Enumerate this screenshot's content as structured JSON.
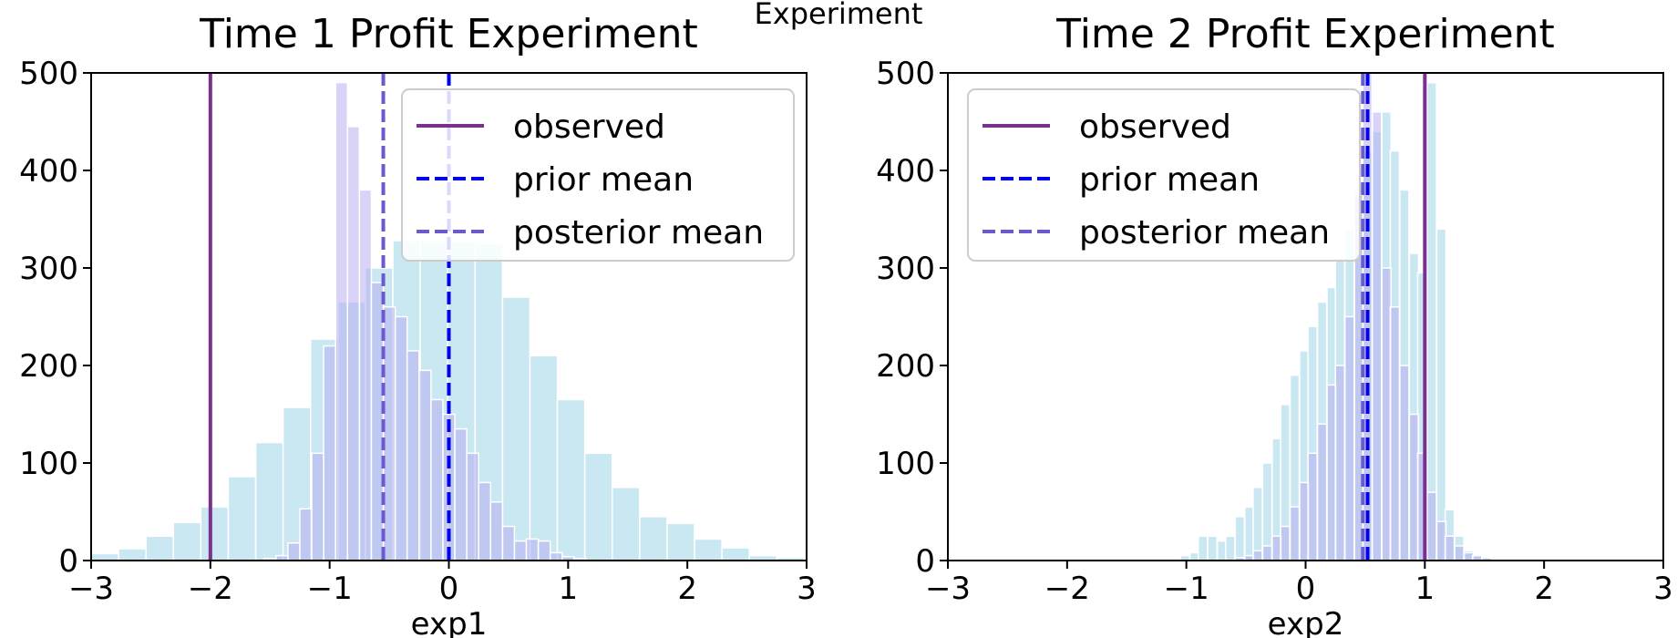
{
  "figure": {
    "suptitle": "Experiment"
  },
  "chart_data": [
    {
      "type": "histogram",
      "title": "Time 1 Profit Experiment",
      "xlabel": "exp1",
      "ylabel": "",
      "xlim": [
        -3,
        3
      ],
      "ylim": [
        0,
        500
      ],
      "xticks": [
        "−3",
        "−2",
        "−1",
        "0",
        "1",
        "2",
        "3"
      ],
      "yticks": [
        "0",
        "100",
        "200",
        "300",
        "400",
        "500"
      ],
      "grid": false,
      "legend": {
        "position": "top-right",
        "entries": [
          "observed",
          "prior mean",
          "posterior mean"
        ]
      },
      "colors": {
        "prior": "#a6d8ea",
        "posterior": "#b3a8f0",
        "observed": "#7b2f8f",
        "prior_mean": "#0000ee",
        "posterior_mean": "#6a5acd"
      },
      "series": [
        {
          "name": "prior",
          "bin_width": 0.23,
          "bins": [
            [
              -3.0,
              7
            ],
            [
              -2.77,
              12
            ],
            [
              -2.54,
              25
            ],
            [
              -2.31,
              39
            ],
            [
              -2.08,
              55
            ],
            [
              -1.85,
              86
            ],
            [
              -1.62,
              121
            ],
            [
              -1.39,
              157
            ],
            [
              -1.16,
              227
            ],
            [
              -0.93,
              265
            ],
            [
              -0.7,
              300
            ],
            [
              -0.47,
              328
            ],
            [
              -0.24,
              328
            ],
            [
              -0.01,
              327
            ],
            [
              0.22,
              325
            ],
            [
              0.45,
              270
            ],
            [
              0.68,
              210
            ],
            [
              0.91,
              165
            ],
            [
              1.14,
              110
            ],
            [
              1.37,
              75
            ],
            [
              1.6,
              45
            ],
            [
              1.83,
              38
            ],
            [
              2.06,
              22
            ],
            [
              2.29,
              13
            ],
            [
              2.52,
              5
            ],
            [
              2.75,
              3
            ]
          ]
        },
        {
          "name": "posterior",
          "bin_width": 0.1,
          "bins": [
            [
              -1.55,
              2
            ],
            [
              -1.45,
              5
            ],
            [
              -1.35,
              18
            ],
            [
              -1.25,
              53
            ],
            [
              -1.15,
              110
            ],
            [
              -1.05,
              220
            ],
            [
              -0.95,
              490
            ],
            [
              -0.85,
              445
            ],
            [
              -0.75,
              380
            ],
            [
              -0.65,
              285
            ],
            [
              -0.55,
              260
            ],
            [
              -0.45,
              250
            ],
            [
              -0.35,
              215
            ],
            [
              -0.25,
              195
            ],
            [
              -0.15,
              165
            ],
            [
              -0.05,
              150
            ],
            [
              0.05,
              135
            ],
            [
              0.15,
              110
            ],
            [
              0.25,
              80
            ],
            [
              0.35,
              60
            ],
            [
              0.45,
              35
            ],
            [
              0.55,
              20
            ],
            [
              0.65,
              22
            ],
            [
              0.75,
              20
            ],
            [
              0.85,
              8
            ],
            [
              0.95,
              4
            ],
            [
              1.05,
              2
            ]
          ]
        }
      ],
      "lines": {
        "observed": -2.0,
        "prior_mean": 0.0,
        "posterior_mean": -0.55
      }
    },
    {
      "type": "histogram",
      "title": "Time 2 Profit Experiment",
      "xlabel": "exp2",
      "ylabel": "",
      "xlim": [
        -3,
        3
      ],
      "ylim": [
        0,
        500
      ],
      "xticks": [
        "−3",
        "−2",
        "−1",
        "0",
        "1",
        "2",
        "3"
      ],
      "yticks": [
        "0",
        "100",
        "200",
        "300",
        "400",
        "500"
      ],
      "grid": false,
      "legend": {
        "position": "top-left",
        "entries": [
          "observed",
          "prior mean",
          "posterior mean"
        ]
      },
      "colors": {
        "prior": "#a6d8ea",
        "posterior": "#b3a8f0",
        "observed": "#7b2f8f",
        "prior_mean": "#0000ee",
        "posterior_mean": "#6a5acd"
      },
      "series": [
        {
          "name": "prior",
          "bin_width": 0.077,
          "bins": [
            [
              -1.05,
              5
            ],
            [
              -0.97,
              8
            ],
            [
              -0.9,
              25
            ],
            [
              -0.82,
              25
            ],
            [
              -0.74,
              20
            ],
            [
              -0.67,
              25
            ],
            [
              -0.59,
              45
            ],
            [
              -0.51,
              55
            ],
            [
              -0.44,
              75
            ],
            [
              -0.36,
              100
            ],
            [
              -0.28,
              125
            ],
            [
              -0.21,
              160
            ],
            [
              -0.13,
              190
            ],
            [
              -0.05,
              215
            ],
            [
              0.02,
              240
            ],
            [
              0.1,
              265
            ],
            [
              0.18,
              280
            ],
            [
              0.25,
              310
            ],
            [
              0.33,
              340
            ],
            [
              0.41,
              385
            ],
            [
              0.48,
              420
            ],
            [
              0.56,
              440
            ],
            [
              0.64,
              460
            ],
            [
              0.71,
              420
            ],
            [
              0.79,
              380
            ],
            [
              0.87,
              315
            ],
            [
              0.94,
              295
            ],
            [
              1.02,
              490
            ],
            [
              1.1,
              340
            ],
            [
              1.17,
              52
            ],
            [
              1.25,
              25
            ],
            [
              1.33,
              10
            ],
            [
              1.4,
              5
            ],
            [
              1.48,
              2
            ]
          ]
        },
        {
          "name": "posterior",
          "bin_width": 0.077,
          "bins": [
            [
              -0.59,
              3
            ],
            [
              -0.51,
              5
            ],
            [
              -0.44,
              10
            ],
            [
              -0.36,
              15
            ],
            [
              -0.28,
              25
            ],
            [
              -0.21,
              35
            ],
            [
              -0.13,
              55
            ],
            [
              -0.05,
              80
            ],
            [
              0.02,
              110
            ],
            [
              0.1,
              140
            ],
            [
              0.18,
              180
            ],
            [
              0.25,
              200
            ],
            [
              0.33,
              250
            ],
            [
              0.41,
              375
            ],
            [
              0.48,
              510
            ],
            [
              0.56,
              460
            ],
            [
              0.64,
              300
            ],
            [
              0.71,
              260
            ],
            [
              0.79,
              200
            ],
            [
              0.87,
              150
            ],
            [
              0.94,
              110
            ],
            [
              1.02,
              70
            ],
            [
              1.1,
              40
            ],
            [
              1.17,
              25
            ],
            [
              1.25,
              15
            ],
            [
              1.33,
              8
            ],
            [
              1.4,
              5
            ],
            [
              1.48,
              3
            ]
          ]
        }
      ],
      "lines": {
        "observed": 1.0,
        "prior_mean": 0.52,
        "posterior_mean": 0.48
      }
    }
  ]
}
